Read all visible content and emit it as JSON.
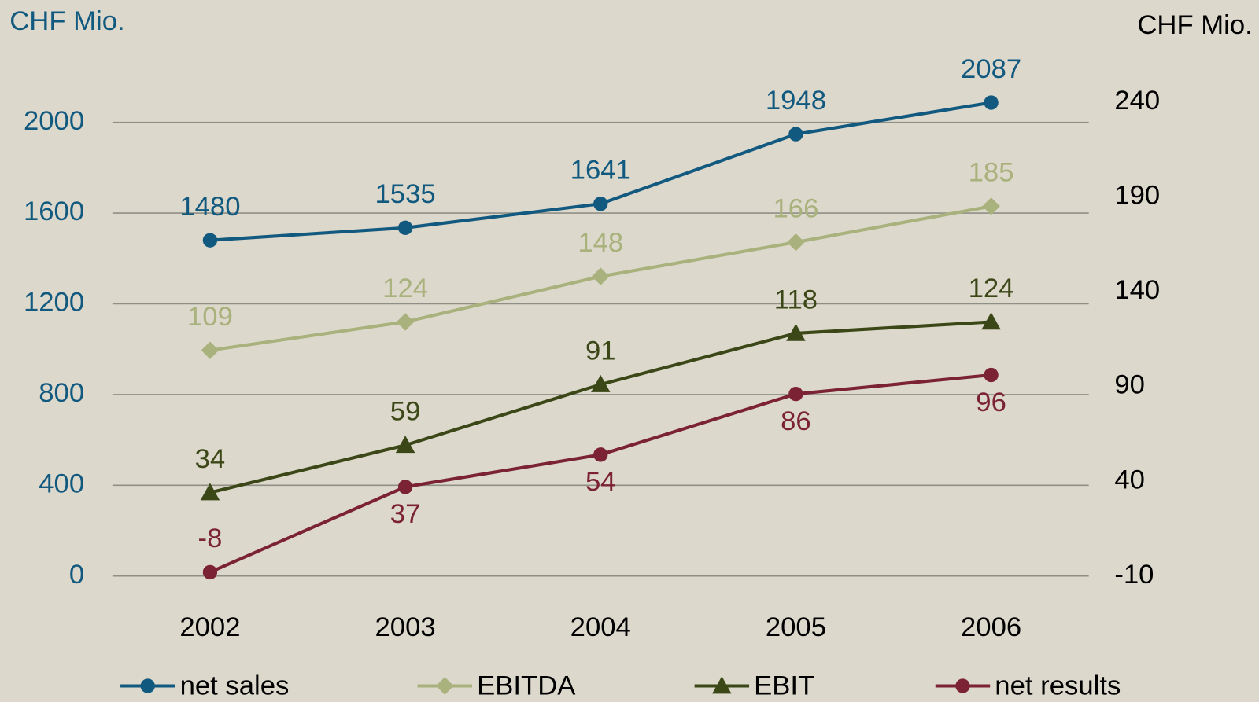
{
  "chart_data": {
    "type": "line",
    "y_label": "CHF Mio.",
    "y2_label": "CHF Mio.",
    "categories": [
      "2002",
      "2003",
      "2004",
      "2005",
      "2006"
    ],
    "series": [
      {
        "name": "net sales",
        "color": "#12597f",
        "marker": "circle",
        "values": [
          1480,
          1535,
          1641,
          1948,
          2087
        ]
      },
      {
        "name": "EBITDA",
        "color": "#a9b17c",
        "marker": "diamond",
        "axis": "y2",
        "values": [
          109,
          124,
          148,
          166,
          185
        ]
      },
      {
        "name": "EBIT",
        "color": "#3b4716",
        "marker": "triangle",
        "axis": "y2",
        "values": [
          34,
          59,
          91,
          118,
          124
        ]
      },
      {
        "name": "net results",
        "color": "#7b2235",
        "marker": "circle",
        "axis": "y2",
        "values": [
          -8,
          37,
          54,
          86,
          96
        ]
      }
    ],
    "ylim": [
      0,
      2090
    ],
    "yticks": [
      0,
      400,
      800,
      1200,
      1600,
      2000
    ],
    "y2lim": [
      -10,
      240
    ],
    "y2ticks": [
      -10,
      40,
      90,
      140,
      190,
      240
    ],
    "grid": true
  }
}
